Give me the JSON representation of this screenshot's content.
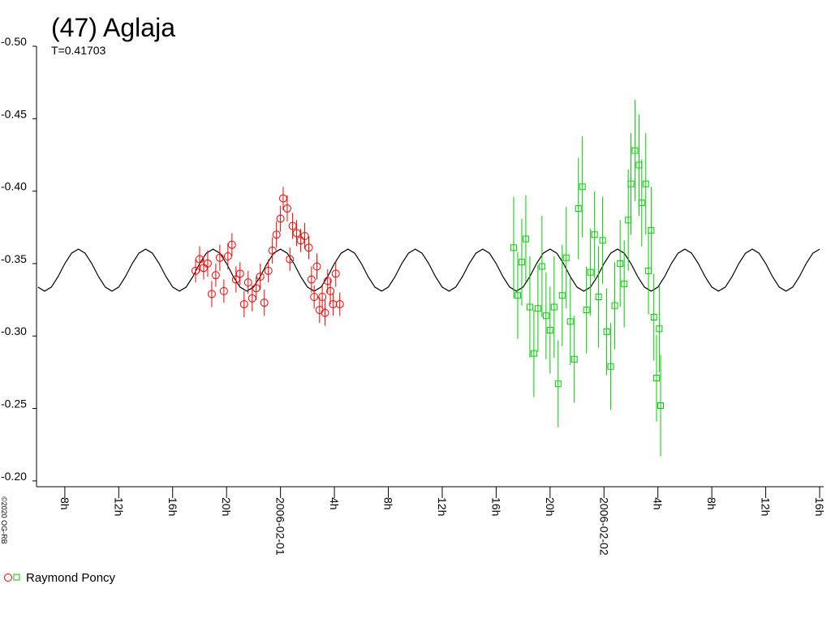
{
  "chart_data": {
    "type": "lightcurve",
    "title": "(47) Aglaja",
    "subtitle": "T=0.41703",
    "credit": "©2020 OG-RB",
    "observer": "Raymond Poncy",
    "xlim": [
      -18.1,
      40.3
    ],
    "xticks": [
      {
        "value": -16,
        "label": "8h"
      },
      {
        "value": -12,
        "label": "12h"
      },
      {
        "value": -8,
        "label": "16h"
      },
      {
        "value": -4,
        "label": "20h"
      },
      {
        "value": 0,
        "label": "2006-02-01"
      },
      {
        "value": 4,
        "label": "4h"
      },
      {
        "value": 8,
        "label": "8h"
      },
      {
        "value": 12,
        "label": "12h"
      },
      {
        "value": 16,
        "label": "16h"
      },
      {
        "value": 20,
        "label": "20h"
      },
      {
        "value": 24,
        "label": "2006-02-02"
      },
      {
        "value": 28,
        "label": "4h"
      },
      {
        "value": 32,
        "label": "8h"
      },
      {
        "value": 36,
        "label": "12h"
      },
      {
        "value": 40,
        "label": "16h"
      }
    ],
    "ylim": [
      -0.5,
      -0.196
    ],
    "y_inverted": true,
    "yticks": [
      {
        "value": -0.5,
        "label": "-0.50"
      },
      {
        "value": -0.45,
        "label": "-0.45"
      },
      {
        "value": -0.4,
        "label": "-0.40"
      },
      {
        "value": -0.35,
        "label": "-0.35"
      },
      {
        "value": -0.3,
        "label": "-0.30"
      },
      {
        "value": -0.25,
        "label": "-0.25"
      },
      {
        "value": -0.2,
        "label": "-0.20"
      }
    ],
    "model": {
      "color": "#000000",
      "x": [
        -18,
        -17.5,
        -17,
        -16.5,
        -16,
        -15.5,
        -15,
        -14.5,
        -14,
        -13.5,
        -13,
        -12.5,
        -12,
        -11.5,
        -11,
        -10.5,
        -10,
        -9.5,
        -9,
        -8.5,
        -8,
        -7.5,
        -7,
        -6.5,
        -6,
        -5.5,
        -5,
        -4.5,
        -4,
        -3.5,
        -3,
        -2.5,
        -2,
        -1.5,
        -1,
        -0.5,
        0,
        0.5,
        1,
        1.5,
        2,
        2.5,
        3,
        3.5,
        4,
        4.5,
        5,
        5.5,
        6,
        6.5,
        7,
        7.5,
        8,
        8.5,
        9,
        9.5,
        10,
        10.5,
        11,
        11.5,
        12,
        12.5,
        13,
        13.5,
        14,
        14.5,
        15,
        15.5,
        16,
        16.5,
        17,
        17.5,
        18,
        18.5,
        19,
        19.5,
        20,
        20.5,
        21,
        21.5,
        22,
        22.5,
        23,
        23.5,
        24,
        24.5,
        25,
        25.5,
        26,
        26.5,
        27,
        27.5,
        28,
        28.5,
        29,
        29.5,
        30,
        30.5,
        31,
        31.5,
        32,
        32.5,
        33,
        33.5,
        34,
        34.5,
        35,
        35.5,
        36,
        36.5,
        37,
        37.5,
        38,
        38.5,
        39,
        39.5,
        40
      ],
      "values": [
        -0.3338,
        -0.331,
        -0.3338,
        -0.341,
        -0.35,
        -0.3572,
        -0.36,
        -0.3572,
        -0.35,
        -0.341,
        -0.3338,
        -0.331,
        -0.3338,
        -0.341,
        -0.35,
        -0.3572,
        -0.36,
        -0.3572,
        -0.35,
        -0.341,
        -0.3338,
        -0.331,
        -0.3338,
        -0.341,
        -0.35,
        -0.3572,
        -0.36,
        -0.3572,
        -0.35,
        -0.341,
        -0.3338,
        -0.331,
        -0.3338,
        -0.341,
        -0.35,
        -0.3572,
        -0.36,
        -0.3572,
        -0.35,
        -0.341,
        -0.3338,
        -0.331,
        -0.3338,
        -0.341,
        -0.35,
        -0.3572,
        -0.36,
        -0.3572,
        -0.35,
        -0.341,
        -0.3338,
        -0.331,
        -0.3338,
        -0.341,
        -0.35,
        -0.3572,
        -0.36,
        -0.3572,
        -0.35,
        -0.341,
        -0.3338,
        -0.331,
        -0.3338,
        -0.341,
        -0.35,
        -0.3572,
        -0.36,
        -0.3572,
        -0.35,
        -0.341,
        -0.3338,
        -0.331,
        -0.3338,
        -0.341,
        -0.35,
        -0.3572,
        -0.36,
        -0.3572,
        -0.35,
        -0.341,
        -0.3338,
        -0.331,
        -0.3338,
        -0.341,
        -0.35,
        -0.3572,
        -0.36,
        -0.3572,
        -0.35,
        -0.341,
        -0.3338,
        -0.331,
        -0.3338,
        -0.341,
        -0.35,
        -0.3572,
        -0.36,
        -0.3572,
        -0.35,
        -0.341,
        -0.3338,
        -0.331,
        -0.3338,
        -0.341,
        -0.35,
        -0.3572,
        -0.36,
        -0.3572,
        -0.35,
        -0.341,
        -0.3338,
        -0.331,
        -0.3338,
        -0.341,
        -0.35,
        -0.3572,
        -0.36
      ]
    },
    "series": [
      {
        "color": "#ff0000",
        "marker": "circle",
        "x": [
          -6.3,
          -6.0,
          -5.7,
          -5.4,
          -5.1,
          -4.8,
          -4.5,
          -4.2,
          -3.9,
          -3.6,
          -3.3,
          -3.0,
          -2.7,
          -2.4,
          -2.1,
          -1.8,
          -1.5,
          -1.2,
          -0.9,
          -0.6,
          -0.3,
          0.0,
          0.2,
          0.5,
          0.7,
          0.9,
          1.2,
          1.5,
          1.8,
          2.1,
          2.3,
          2.5,
          2.7,
          2.9,
          3.1,
          3.3,
          3.5,
          3.7,
          3.9,
          4.1,
          4.4
        ],
        "values": [
          -0.345,
          -0.353,
          -0.347,
          -0.35,
          -0.329,
          -0.342,
          -0.354,
          -0.331,
          -0.355,
          -0.363,
          -0.339,
          -0.343,
          -0.322,
          -0.337,
          -0.326,
          -0.333,
          -0.341,
          -0.323,
          -0.345,
          -0.359,
          -0.37,
          -0.381,
          -0.395,
          -0.388,
          -0.353,
          -0.376,
          -0.371,
          -0.366,
          -0.369,
          -0.361,
          -0.339,
          -0.327,
          -0.348,
          -0.318,
          -0.327,
          -0.316,
          -0.338,
          -0.331,
          -0.322,
          -0.343,
          -0.322
        ],
        "errors": [
          0.008,
          0.009,
          0.008,
          0.009,
          0.009,
          0.008,
          0.009,
          0.008,
          0.009,
          0.008,
          0.009,
          0.008,
          0.009,
          0.008,
          0.009,
          0.008,
          0.009,
          0.009,
          0.008,
          0.009,
          0.009,
          0.009,
          0.008,
          0.009,
          0.008,
          0.009,
          0.009,
          0.008,
          0.009,
          0.008,
          0.009,
          0.008,
          0.009,
          0.009,
          0.008,
          0.009,
          0.008,
          0.009,
          0.008,
          0.009,
          0.008
        ]
      },
      {
        "color": "#00cc00",
        "marker": "square",
        "x": [
          17.3,
          17.6,
          17.9,
          18.2,
          18.5,
          18.8,
          19.1,
          19.4,
          19.7,
          20.0,
          20.3,
          20.6,
          20.9,
          21.2,
          21.5,
          21.8,
          22.1,
          22.4,
          22.7,
          23.0,
          23.3,
          23.6,
          23.9,
          24.2,
          24.5,
          24.8,
          25.2,
          25.5,
          25.8,
          26.0,
          26.3,
          26.6,
          26.8,
          27.1,
          27.3,
          27.5,
          27.7,
          27.9,
          28.1,
          28.2
        ],
        "values": [
          -0.361,
          -0.328,
          -0.351,
          -0.367,
          -0.32,
          -0.288,
          -0.319,
          -0.348,
          -0.314,
          -0.304,
          -0.32,
          -0.267,
          -0.328,
          -0.354,
          -0.31,
          -0.284,
          -0.388,
          -0.403,
          -0.318,
          -0.344,
          -0.37,
          -0.327,
          -0.366,
          -0.303,
          -0.279,
          -0.321,
          -0.35,
          -0.336,
          -0.38,
          -0.405,
          -0.428,
          -0.418,
          -0.392,
          -0.405,
          -0.345,
          -0.373,
          -0.313,
          -0.271,
          -0.305,
          -0.252
        ],
        "errors": [
          0.035,
          0.03,
          0.03,
          0.03,
          0.035,
          0.03,
          0.03,
          0.035,
          0.03,
          0.03,
          0.035,
          0.03,
          0.035,
          0.035,
          0.03,
          0.03,
          0.035,
          0.035,
          0.03,
          0.03,
          0.03,
          0.035,
          0.03,
          0.03,
          0.03,
          0.03,
          0.03,
          0.03,
          0.035,
          0.035,
          0.035,
          0.035,
          0.03,
          0.035,
          0.03,
          0.03,
          0.03,
          0.03,
          0.03,
          0.035
        ]
      }
    ]
  }
}
